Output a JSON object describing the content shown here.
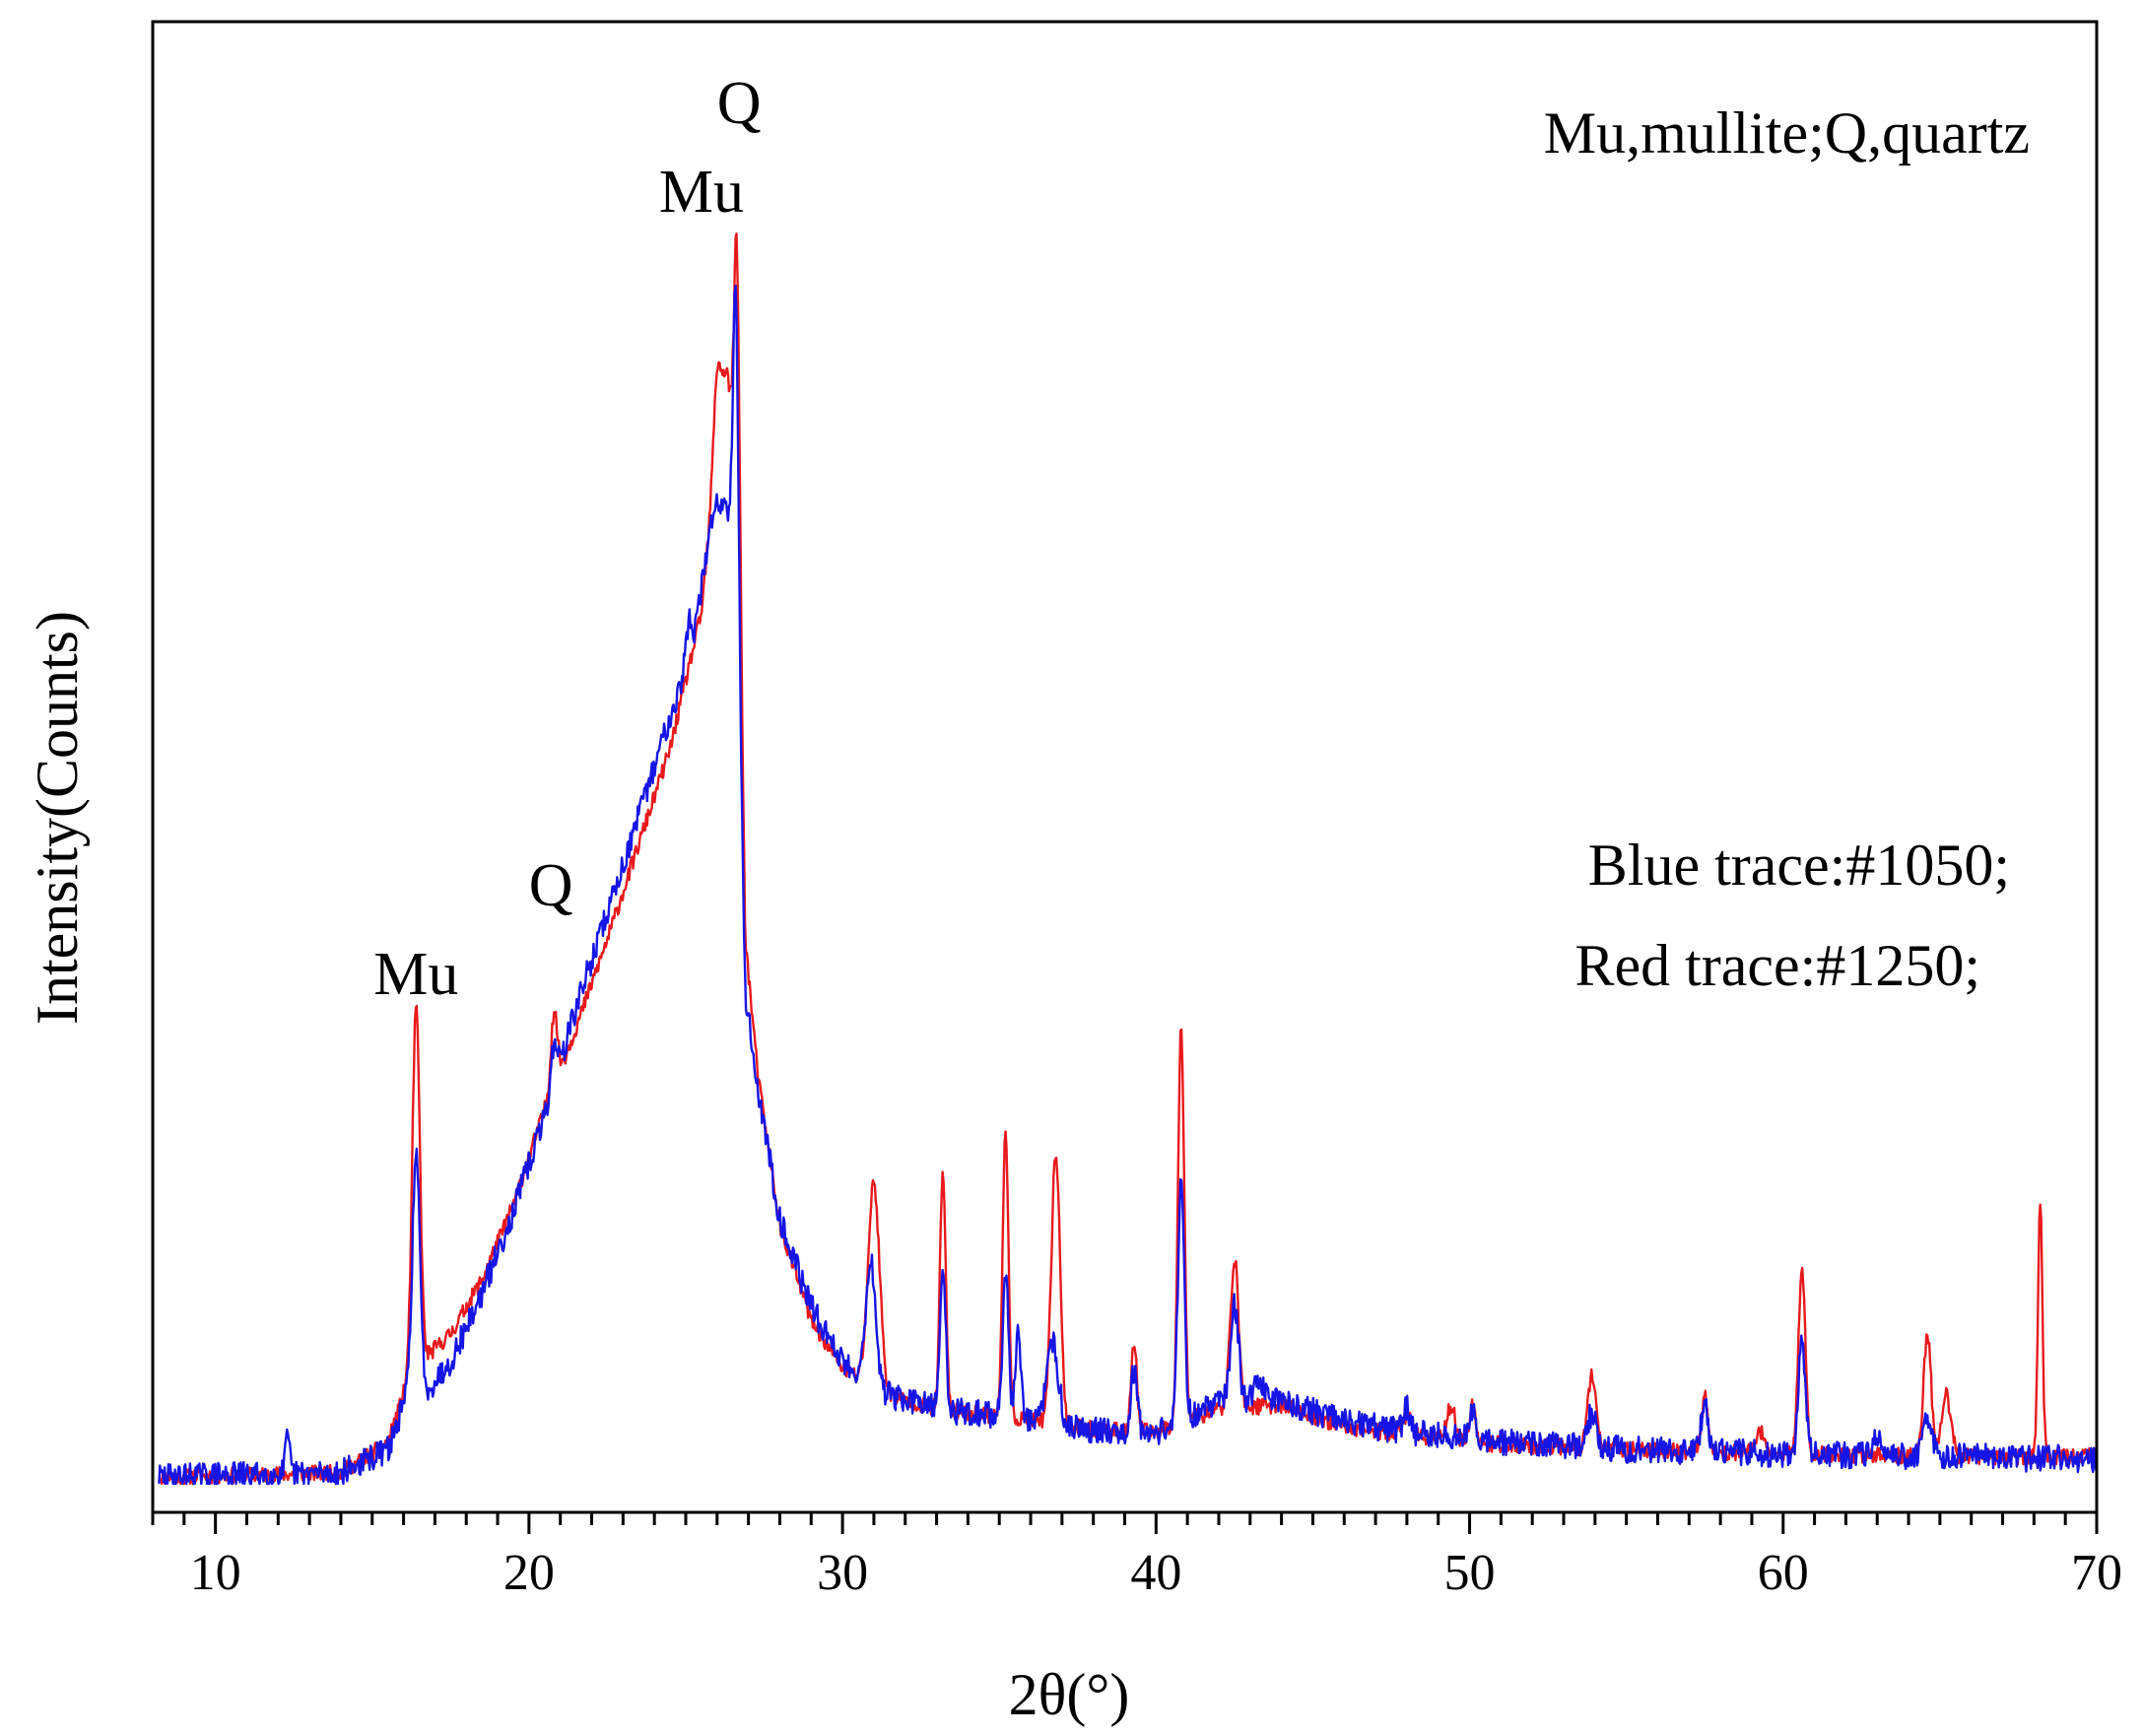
{
  "chart_data": {
    "type": "line",
    "title": "",
    "xlabel": "2θ(°)",
    "ylabel": "Intensity(Counts)",
    "xlim": [
      8,
      70
    ],
    "ylim": [
      0,
      1000
    ],
    "x_major_ticks": [
      10,
      20,
      30,
      40,
      50,
      60,
      70
    ],
    "x_tick_labels": [
      "10",
      "20",
      "30",
      "40",
      "50",
      "60",
      "70"
    ],
    "x_minor_step": 1,
    "y_ticks_shown": false,
    "legend_notes": [
      "Mu,mullite;Q,quartz",
      "Blue trace:#1050;",
      "Red trace:#1250;"
    ],
    "annotations": [
      {
        "text": "Mu",
        "x": 16.4,
        "y": 360
      },
      {
        "text": "Q",
        "x": 20.7,
        "y": 425
      },
      {
        "text": "Mu",
        "x": 25.5,
        "y": 935
      },
      {
        "text": "Q",
        "x": 26.7,
        "y": 1000
      }
    ],
    "series": [
      {
        "name": "#1250",
        "color": "#e8191c",
        "baseline": [
          [
            8,
            5
          ],
          [
            14,
            8
          ],
          [
            15.5,
            30
          ],
          [
            16.2,
            80
          ],
          [
            16.8,
            95
          ],
          [
            17.5,
            110
          ],
          [
            18.5,
            150
          ],
          [
            19.5,
            205
          ],
          [
            20.5,
            275
          ],
          [
            21.5,
            335
          ],
          [
            22.5,
            400
          ],
          [
            23.5,
            470
          ],
          [
            24.5,
            540
          ],
          [
            25.5,
            640
          ],
          [
            26.0,
            760
          ],
          [
            26.3,
            820
          ],
          [
            26.6,
            760
          ],
          [
            26.9,
            400
          ],
          [
            27.3,
            300
          ],
          [
            28.0,
            190
          ],
          [
            29.0,
            120
          ],
          [
            30.0,
            85
          ],
          [
            31.5,
            65
          ],
          [
            33,
            55
          ],
          [
            35,
            50
          ],
          [
            38,
            40
          ],
          [
            40,
            38
          ],
          [
            42,
            55
          ],
          [
            44,
            58
          ],
          [
            46,
            42
          ],
          [
            50,
            30
          ],
          [
            55,
            25
          ],
          [
            60,
            22
          ],
          [
            65,
            20
          ],
          [
            70,
            20
          ]
        ],
        "peaks": [
          [
            16.4,
            265,
            0.12
          ],
          [
            20.8,
            55,
            0.1
          ],
          [
            26.0,
            60,
            0.12
          ],
          [
            26.65,
            190,
            0.09
          ],
          [
            31.0,
            150,
            0.18
          ],
          [
            33.2,
            175,
            0.09
          ],
          [
            35.2,
            215,
            0.09
          ],
          [
            36.8,
            200,
            0.14
          ],
          [
            39.3,
            65,
            0.09
          ],
          [
            40.8,
            290,
            0.1
          ],
          [
            42.5,
            110,
            0.13
          ],
          [
            48.0,
            15,
            0.12
          ],
          [
            49.4,
            25,
            0.14
          ],
          [
            50.1,
            28,
            0.1
          ],
          [
            53.9,
            55,
            0.13
          ],
          [
            57.5,
            40,
            0.1
          ],
          [
            59.3,
            15,
            0.15
          ],
          [
            60.6,
            140,
            0.11
          ],
          [
            64.6,
            90,
            0.12
          ],
          [
            65.2,
            45,
            0.15
          ],
          [
            68.2,
            190,
            0.07
          ]
        ],
        "noise": 6,
        "seed": 11
      },
      {
        "name": "#1050",
        "color": "#1515e6",
        "baseline": [
          [
            8,
            5
          ],
          [
            14,
            8
          ],
          [
            15.5,
            25
          ],
          [
            16.2,
            70
          ],
          [
            16.8,
            70
          ],
          [
            17.5,
            90
          ],
          [
            18.5,
            140
          ],
          [
            19.5,
            200
          ],
          [
            20.5,
            270
          ],
          [
            21.5,
            350
          ],
          [
            22.5,
            420
          ],
          [
            23.5,
            490
          ],
          [
            24.5,
            565
          ],
          [
            25.2,
            610
          ],
          [
            25.9,
            720
          ],
          [
            26.3,
            720
          ],
          [
            26.6,
            680
          ],
          [
            26.9,
            360
          ],
          [
            27.3,
            290
          ],
          [
            28.0,
            195
          ],
          [
            29.0,
            130
          ],
          [
            30.0,
            90
          ],
          [
            31.5,
            65
          ],
          [
            33,
            55
          ],
          [
            35,
            50
          ],
          [
            38,
            40
          ],
          [
            40,
            38
          ],
          [
            42,
            60
          ],
          [
            44,
            62
          ],
          [
            46,
            45
          ],
          [
            50,
            32
          ],
          [
            55,
            25
          ],
          [
            60,
            22
          ],
          [
            65,
            20
          ],
          [
            70,
            18
          ]
        ],
        "peaks": [
          [
            12.3,
            25,
            0.07
          ],
          [
            16.4,
            170,
            0.12
          ],
          [
            20.8,
            30,
            0.1
          ],
          [
            25.1,
            30,
            0.1
          ],
          [
            26.6,
            210,
            0.09
          ],
          [
            30.9,
            90,
            0.15
          ],
          [
            33.2,
            105,
            0.09
          ],
          [
            35.2,
            110,
            0.09
          ],
          [
            35.6,
            70,
            0.08
          ],
          [
            36.7,
            60,
            0.18
          ],
          [
            39.3,
            45,
            0.1
          ],
          [
            40.8,
            180,
            0.1
          ],
          [
            42.5,
            70,
            0.13
          ],
          [
            43.3,
            15,
            0.15
          ],
          [
            48.0,
            18,
            0.1
          ],
          [
            50.1,
            25,
            0.1
          ],
          [
            53.9,
            25,
            0.15
          ],
          [
            57.5,
            40,
            0.1
          ],
          [
            60.6,
            85,
            0.11
          ],
          [
            63.0,
            15,
            0.15
          ],
          [
            64.6,
            30,
            0.15
          ]
        ],
        "noise": 10,
        "seed": 29
      }
    ]
  }
}
